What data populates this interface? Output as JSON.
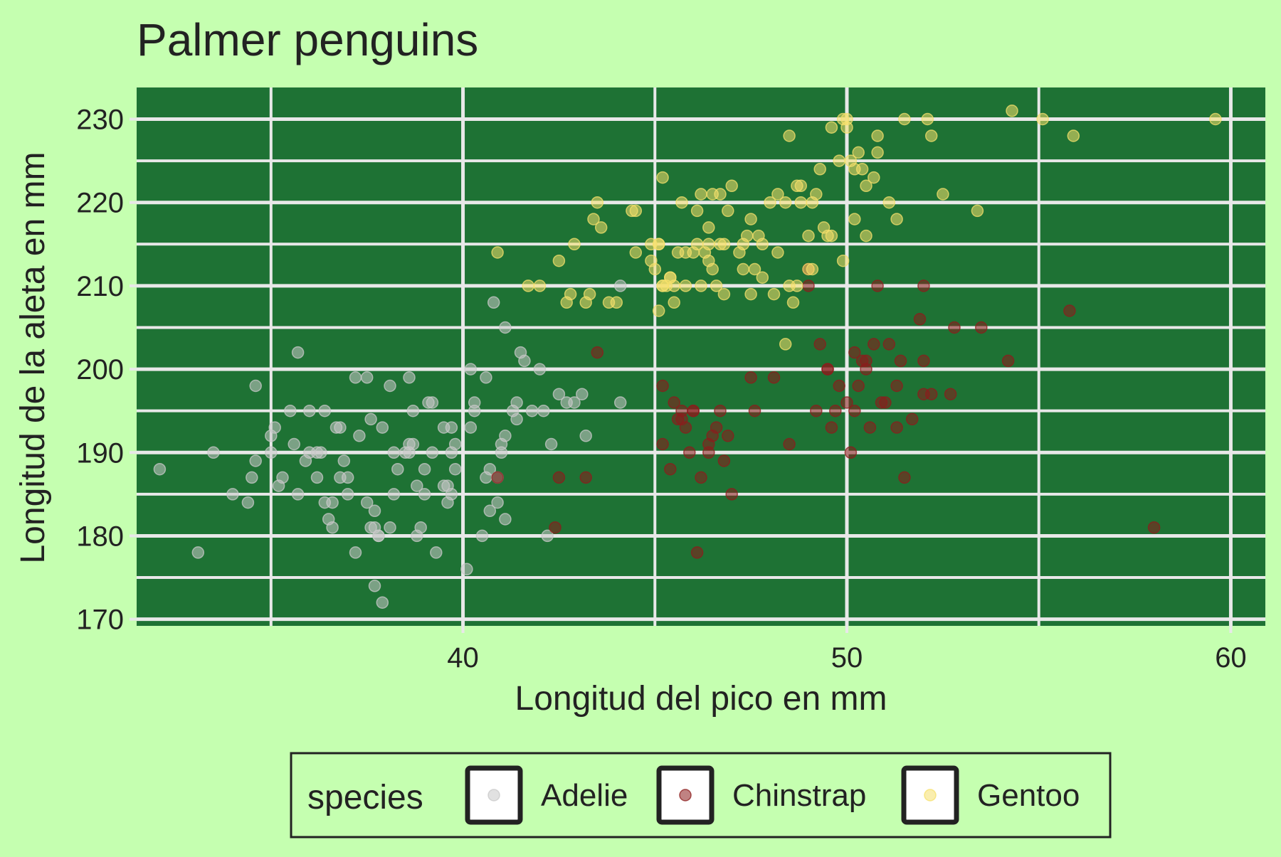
{
  "chart_data": {
    "type": "scatter",
    "title": "Palmer penguins",
    "xlabel": "Longitud del pico en mm",
    "ylabel": "Longitud de la aleta en mm",
    "xlim": [
      31.5,
      60.9
    ],
    "ylim": [
      169.2,
      233.8
    ],
    "x_ticks": [
      40,
      50,
      60
    ],
    "y_ticks": [
      170,
      180,
      190,
      200,
      210,
      220,
      230
    ],
    "grid": true,
    "legend": {
      "position": "bottom",
      "title": "species"
    },
    "colors": {
      "page_background": "#c5ffb0",
      "panel_background": "#1e7234",
      "grid": "#e8e8e8"
    },
    "series": [
      {
        "name": "Adelie",
        "color": "#c8c8c8",
        "points": [
          [
            32.1,
            188
          ],
          [
            33.1,
            178
          ],
          [
            33.5,
            190
          ],
          [
            34.0,
            185
          ],
          [
            34.4,
            184
          ],
          [
            34.5,
            187
          ],
          [
            34.6,
            198
          ],
          [
            34.6,
            189
          ],
          [
            35.0,
            190
          ],
          [
            35.1,
            193
          ],
          [
            35.2,
            186
          ],
          [
            35.3,
            187
          ],
          [
            35.5,
            195
          ],
          [
            35.6,
            191
          ],
          [
            35.7,
            185
          ],
          [
            35.7,
            202
          ],
          [
            35.9,
            189
          ],
          [
            36.0,
            190
          ],
          [
            36.0,
            195
          ],
          [
            36.2,
            187
          ],
          [
            36.2,
            190
          ],
          [
            36.3,
            190
          ],
          [
            36.4,
            184
          ],
          [
            36.5,
            182
          ],
          [
            36.6,
            181
          ],
          [
            36.7,
            193
          ],
          [
            36.8,
            187
          ],
          [
            36.9,
            189
          ],
          [
            37.0,
            185
          ],
          [
            37.2,
            178
          ],
          [
            37.3,
            192
          ],
          [
            37.5,
            199
          ],
          [
            37.6,
            194
          ],
          [
            37.7,
            181
          ],
          [
            37.8,
            180
          ],
          [
            37.9,
            193
          ],
          [
            38.1,
            198
          ],
          [
            38.2,
            190
          ],
          [
            38.3,
            188
          ],
          [
            38.5,
            190
          ],
          [
            38.6,
            191
          ],
          [
            38.7,
            195
          ],
          [
            38.8,
            180
          ],
          [
            38.9,
            181
          ],
          [
            39.0,
            188
          ],
          [
            39.1,
            196
          ],
          [
            39.2,
            190
          ],
          [
            39.3,
            178
          ],
          [
            39.5,
            193
          ],
          [
            39.6,
            184
          ],
          [
            39.7,
            185
          ],
          [
            39.8,
            188
          ],
          [
            40.1,
            176
          ],
          [
            40.2,
            200
          ],
          [
            40.3,
            195
          ],
          [
            40.5,
            180
          ],
          [
            40.6,
            187
          ],
          [
            40.7,
            183
          ],
          [
            40.8,
            208
          ],
          [
            40.9,
            184
          ],
          [
            41.0,
            190
          ],
          [
            41.1,
            182
          ],
          [
            41.1,
            205
          ],
          [
            41.3,
            195
          ],
          [
            41.5,
            202
          ],
          [
            41.6,
            201
          ],
          [
            41.8,
            195
          ],
          [
            42.0,
            200
          ],
          [
            42.2,
            180
          ],
          [
            42.3,
            191
          ],
          [
            42.5,
            197
          ],
          [
            42.7,
            196
          ],
          [
            42.9,
            196
          ],
          [
            43.1,
            197
          ],
          [
            43.2,
            192
          ],
          [
            44.1,
            210
          ],
          [
            44.1,
            196
          ],
          [
            37.2,
            199
          ],
          [
            38.6,
            199
          ],
          [
            39.7,
            193
          ],
          [
            36.4,
            195
          ],
          [
            37.8,
            180
          ],
          [
            39.5,
            186
          ],
          [
            40.2,
            193
          ],
          [
            41.4,
            196
          ],
          [
            37.6,
            181
          ],
          [
            38.8,
            186
          ],
          [
            40.6,
            199
          ],
          [
            41.1,
            192
          ],
          [
            39.0,
            185
          ],
          [
            38.1,
            181
          ],
          [
            35.0,
            192
          ],
          [
            36.8,
            193
          ],
          [
            37.7,
            183
          ],
          [
            38.2,
            185
          ],
          [
            39.6,
            186
          ],
          [
            40.9,
            187
          ],
          [
            41.4,
            194
          ],
          [
            42.1,
            195
          ],
          [
            39.2,
            196
          ],
          [
            36.6,
            184
          ],
          [
            37.7,
            174
          ],
          [
            37.9,
            172
          ],
          [
            38.6,
            190
          ],
          [
            39.7,
            190
          ],
          [
            40.3,
            196
          ],
          [
            41.0,
            191
          ],
          [
            37.0,
            187
          ],
          [
            37.5,
            184
          ],
          [
            38.7,
            191
          ],
          [
            39.8,
            191
          ],
          [
            40.7,
            188
          ]
        ]
      },
      {
        "name": "Chinstrap",
        "color": "#8c1c1c",
        "points": [
          [
            40.9,
            187
          ],
          [
            42.4,
            181
          ],
          [
            42.5,
            187
          ],
          [
            43.2,
            187
          ],
          [
            43.5,
            202
          ],
          [
            45.2,
            198
          ],
          [
            45.2,
            191
          ],
          [
            45.4,
            188
          ],
          [
            45.5,
            196
          ],
          [
            45.6,
            194
          ],
          [
            45.7,
            195
          ],
          [
            45.9,
            190
          ],
          [
            46.0,
            195
          ],
          [
            46.1,
            178
          ],
          [
            46.2,
            187
          ],
          [
            46.4,
            191
          ],
          [
            46.5,
            192
          ],
          [
            46.6,
            193
          ],
          [
            46.7,
            195
          ],
          [
            46.8,
            189
          ],
          [
            46.9,
            192
          ],
          [
            47.0,
            185
          ],
          [
            47.5,
            199
          ],
          [
            47.6,
            195
          ],
          [
            48.1,
            199
          ],
          [
            48.5,
            191
          ],
          [
            49.0,
            212
          ],
          [
            49.0,
            210
          ],
          [
            49.2,
            195
          ],
          [
            49.3,
            203
          ],
          [
            49.5,
            200
          ],
          [
            49.6,
            193
          ],
          [
            49.7,
            195
          ],
          [
            49.8,
            198
          ],
          [
            50.0,
            196
          ],
          [
            50.1,
            190
          ],
          [
            50.2,
            202
          ],
          [
            50.3,
            198
          ],
          [
            50.5,
            200
          ],
          [
            50.5,
            201
          ],
          [
            50.6,
            193
          ],
          [
            50.7,
            203
          ],
          [
            50.8,
            210
          ],
          [
            50.9,
            196
          ],
          [
            51.0,
            196
          ],
          [
            51.3,
            198
          ],
          [
            51.3,
            193
          ],
          [
            51.4,
            201
          ],
          [
            51.5,
            187
          ],
          [
            51.7,
            194
          ],
          [
            51.9,
            206
          ],
          [
            52.0,
            210
          ],
          [
            52.0,
            201
          ],
          [
            52.2,
            197
          ],
          [
            52.7,
            197
          ],
          [
            52.8,
            205
          ],
          [
            53.5,
            205
          ],
          [
            54.2,
            201
          ],
          [
            55.8,
            207
          ],
          [
            58.0,
            181
          ],
          [
            45.7,
            194
          ],
          [
            46.4,
            190
          ],
          [
            49.5,
            200
          ],
          [
            50.2,
            195
          ],
          [
            46.0,
            195
          ],
          [
            51.1,
            203
          ],
          [
            50.4,
            201
          ],
          [
            52.0,
            197
          ],
          [
            45.8,
            193
          ]
        ]
      },
      {
        "name": "Gentoo",
        "color": "#f5e06b",
        "points": [
          [
            40.9,
            214
          ],
          [
            41.7,
            210
          ],
          [
            42.0,
            210
          ],
          [
            42.5,
            213
          ],
          [
            42.7,
            208
          ],
          [
            42.8,
            209
          ],
          [
            42.9,
            215
          ],
          [
            43.2,
            208
          ],
          [
            43.3,
            209
          ],
          [
            43.4,
            218
          ],
          [
            43.5,
            220
          ],
          [
            43.6,
            217
          ],
          [
            43.8,
            208
          ],
          [
            44.0,
            208
          ],
          [
            44.4,
            219
          ],
          [
            44.5,
            214
          ],
          [
            44.9,
            213
          ],
          [
            45.0,
            212
          ],
          [
            45.1,
            215
          ],
          [
            45.2,
            210
          ],
          [
            45.2,
            223
          ],
          [
            45.3,
            210
          ],
          [
            45.4,
            211
          ],
          [
            45.5,
            210
          ],
          [
            45.5,
            208
          ],
          [
            45.6,
            214
          ],
          [
            45.7,
            220
          ],
          [
            45.8,
            210
          ],
          [
            46.0,
            214
          ],
          [
            46.1,
            219
          ],
          [
            46.2,
            210
          ],
          [
            46.3,
            214
          ],
          [
            46.4,
            217
          ],
          [
            46.5,
            212
          ],
          [
            46.6,
            210
          ],
          [
            46.7,
            215
          ],
          [
            46.8,
            209
          ],
          [
            46.9,
            219
          ],
          [
            47.0,
            222
          ],
          [
            47.2,
            214
          ],
          [
            47.4,
            216
          ],
          [
            47.5,
            218
          ],
          [
            47.6,
            212
          ],
          [
            47.7,
            216
          ],
          [
            47.8,
            211
          ],
          [
            48.1,
            209
          ],
          [
            48.2,
            221
          ],
          [
            48.4,
            220
          ],
          [
            48.5,
            210
          ],
          [
            48.6,
            208
          ],
          [
            48.7,
            222
          ],
          [
            48.8,
            222
          ],
          [
            49.0,
            216
          ],
          [
            49.1,
            220
          ],
          [
            49.2,
            221
          ],
          [
            49.4,
            217
          ],
          [
            49.5,
            216
          ],
          [
            49.6,
            229
          ],
          [
            49.8,
            225
          ],
          [
            50.0,
            229
          ],
          [
            50.1,
            225
          ],
          [
            50.2,
            218
          ],
          [
            50.4,
            224
          ],
          [
            50.5,
            222
          ],
          [
            50.7,
            223
          ],
          [
            50.8,
            226
          ],
          [
            51.1,
            220
          ],
          [
            51.3,
            218
          ],
          [
            51.5,
            230
          ],
          [
            52.1,
            230
          ],
          [
            52.2,
            228
          ],
          [
            52.5,
            221
          ],
          [
            53.4,
            219
          ],
          [
            54.3,
            231
          ],
          [
            55.1,
            230
          ],
          [
            55.9,
            228
          ],
          [
            59.6,
            230
          ],
          [
            46.5,
            221
          ],
          [
            47.3,
            215
          ],
          [
            45.1,
            215
          ],
          [
            49.9,
            213
          ],
          [
            48.7,
            210
          ],
          [
            49.6,
            216
          ],
          [
            47.5,
            209
          ],
          [
            46.4,
            215
          ],
          [
            45.2,
            210
          ],
          [
            48.0,
            220
          ],
          [
            49.3,
            224
          ],
          [
            50.0,
            230
          ],
          [
            44.9,
            215
          ],
          [
            46.8,
            215
          ],
          [
            48.4,
            203
          ],
          [
            49.0,
            212
          ],
          [
            50.8,
            228
          ],
          [
            47.8,
            215
          ],
          [
            46.2,
            221
          ],
          [
            45.4,
            211
          ],
          [
            46.1,
            215
          ],
          [
            48.8,
            220
          ],
          [
            49.1,
            212
          ],
          [
            50.2,
            224
          ],
          [
            50.3,
            226
          ],
          [
            45.1,
            207
          ],
          [
            46.7,
            221
          ],
          [
            48.2,
            214
          ],
          [
            44.5,
            219
          ],
          [
            47.3,
            212
          ],
          [
            49.9,
            230
          ],
          [
            48.5,
            228
          ],
          [
            45.8,
            214
          ],
          [
            46.4,
            213
          ],
          [
            50.5,
            216
          ]
        ]
      }
    ]
  }
}
